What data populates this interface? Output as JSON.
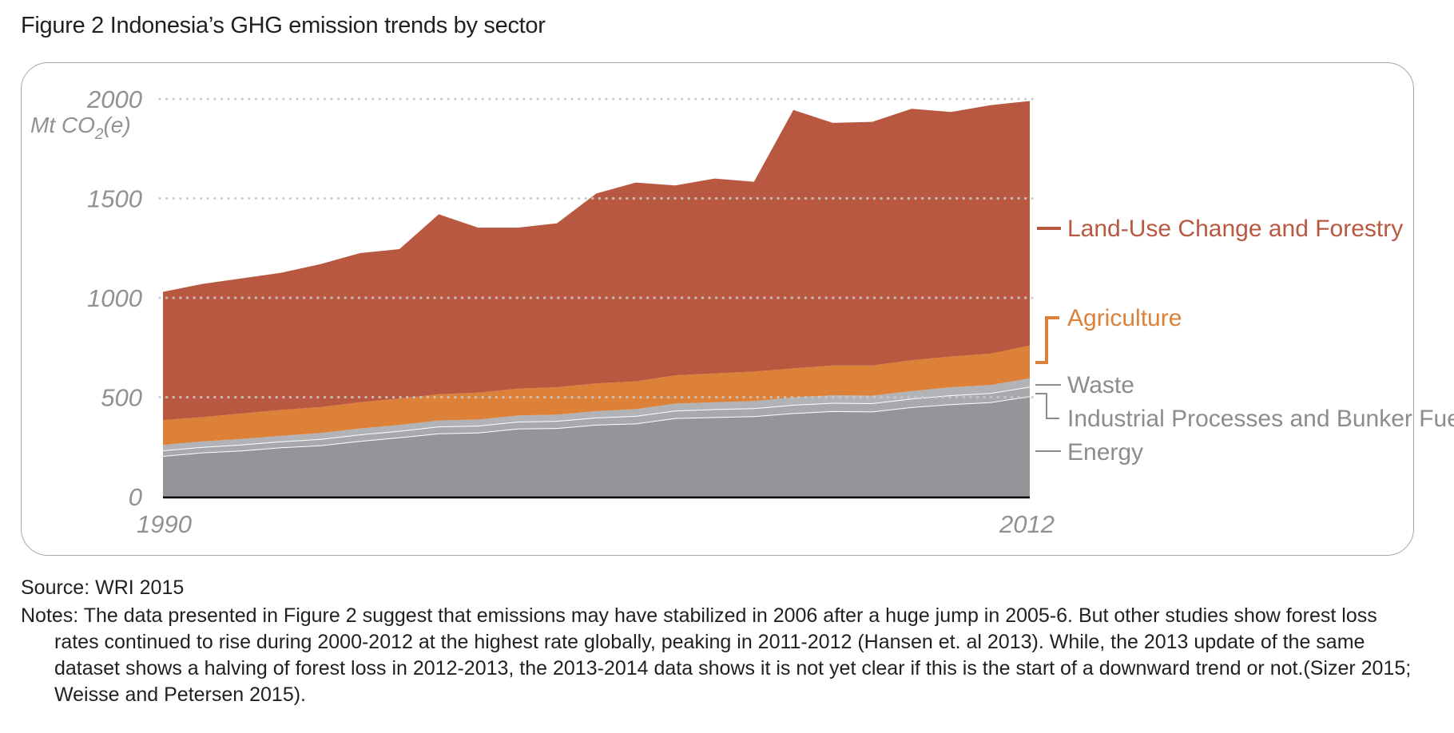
{
  "title": "Figure 2 Indonesia’s GHG emission trends by sector",
  "source": "Source: WRI 2015",
  "notes": "Notes: The data presented in Figure 2 suggest that emissions may have stabilized in 2006 after a huge jump in 2005-6. But other studies show forest loss rates continued to rise during 2000-2012 at the highest rate globally, peaking in 2011-2012 (Hansen et. al 2013). While, the 2013 update of the same dataset shows a halving of forest loss in 2012-2013, the 2013-2014 data shows it is not yet clear if this is the start of a downward trend or not.(Sizer 2015; Weisse and Petersen 2015).",
  "colors": {
    "energy": "#939598",
    "industrial": "#a7a9ac",
    "waste": "#b1b3b6",
    "agriculture": "#dd8038",
    "lucf": "#b85840",
    "axis_text": "#8f9194",
    "label_gray": "#8a8c8f",
    "grid": "#a0a0a0"
  },
  "chart_data": {
    "type": "area",
    "stacked": true,
    "unit_label": {
      "prefix": "Mt CO",
      "subscript": "2",
      "suffix": "(e)"
    },
    "x": [
      1990,
      1991,
      1992,
      1993,
      1994,
      1995,
      1996,
      1997,
      1998,
      1999,
      2000,
      2001,
      2002,
      2003,
      2004,
      2005,
      2006,
      2007,
      2008,
      2009,
      2010,
      2011,
      2012
    ],
    "x_tick_labels": [
      "1990",
      "2012"
    ],
    "y_ticks": [
      0,
      500,
      1000,
      1500,
      2000
    ],
    "ylim": [
      0,
      2000
    ],
    "grid": "dotted horizontal at each y tick",
    "series": [
      {
        "name": "Energy",
        "key": "energy",
        "values": [
          205,
          222,
          232,
          248,
          258,
          280,
          298,
          318,
          322,
          342,
          345,
          362,
          368,
          395,
          400,
          405,
          420,
          430,
          428,
          450,
          465,
          475,
          505
        ]
      },
      {
        "name": "Industrial Processes and Bunker Fuels",
        "key": "industrial",
        "values": [
          28,
          28,
          30,
          30,
          32,
          33,
          33,
          35,
          35,
          35,
          36,
          36,
          38,
          38,
          40,
          40,
          42,
          42,
          42,
          43,
          45,
          46,
          48
        ]
      },
      {
        "name": "Waste",
        "key": "waste",
        "values": [
          27,
          28,
          28,
          28,
          30,
          30,
          30,
          30,
          31,
          31,
          32,
          32,
          34,
          35,
          35,
          36,
          37,
          38,
          38,
          38,
          40,
          40,
          42
        ]
      },
      {
        "name": "Agriculture",
        "key": "agriculture",
        "values": [
          125,
          122,
          128,
          130,
          130,
          132,
          132,
          132,
          135,
          135,
          137,
          140,
          140,
          142,
          145,
          148,
          146,
          150,
          152,
          155,
          155,
          158,
          165
        ]
      },
      {
        "name": "Land-Use Change and Forestry",
        "key": "lucf",
        "values": [
          645,
          670,
          680,
          690,
          720,
          750,
          752,
          905,
          830,
          810,
          825,
          955,
          1000,
          955,
          980,
          955,
          1300,
          1220,
          1225,
          1265,
          1230,
          1250,
          1230
        ]
      }
    ],
    "legend": {
      "placement": "right",
      "entries_top_to_bottom": [
        "Land-Use Change and Forestry",
        "Agriculture",
        "Waste",
        "Industrial Processes and Bunker Fuels",
        "Energy"
      ]
    }
  }
}
